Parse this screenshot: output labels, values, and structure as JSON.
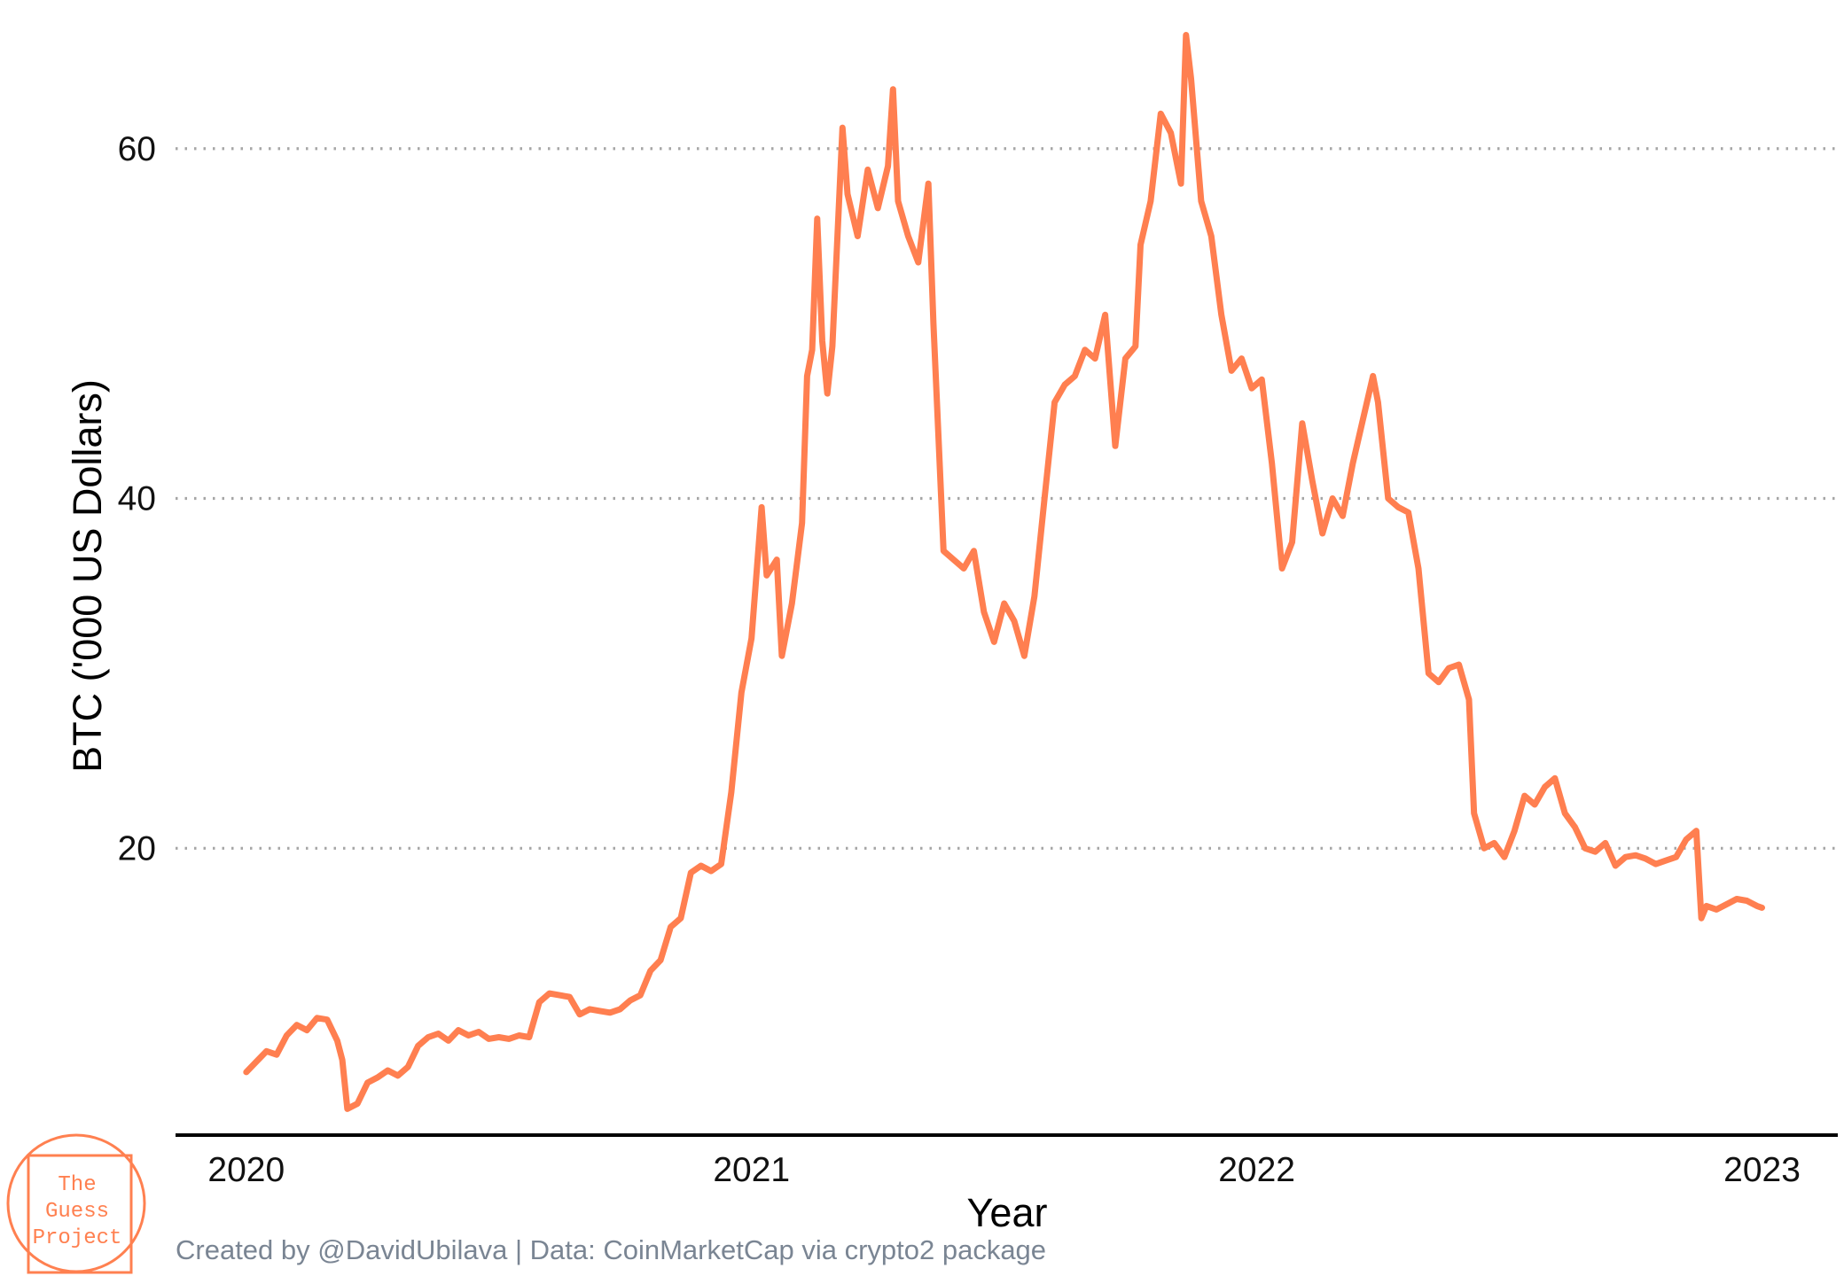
{
  "chart_data": {
    "type": "line",
    "xlabel": "Year",
    "ylabel": "BTC ('000 US Dollars)",
    "caption": "Created by @DavidUbilava | Data: CoinMarketCap via crypto2 package",
    "x_ticks": [
      {
        "value": 2020,
        "label": "2020"
      },
      {
        "value": 2021,
        "label": "2021"
      },
      {
        "value": 2022,
        "label": "2022"
      },
      {
        "value": 2023,
        "label": "2023"
      }
    ],
    "y_ticks": [
      {
        "value": 20,
        "label": "20"
      },
      {
        "value": 40,
        "label": "40"
      },
      {
        "value": 60,
        "label": "60"
      }
    ],
    "xlim": [
      2019.86,
      2023.15
    ],
    "ylim": [
      3.6,
      68.5
    ],
    "grid": {
      "horizontal": "dotted",
      "vertical": false
    },
    "series": [
      {
        "color": "#ff7f50",
        "points": [
          [
            2020.0,
            7.2
          ],
          [
            2020.02,
            7.8
          ],
          [
            2020.04,
            8.4
          ],
          [
            2020.06,
            8.2
          ],
          [
            2020.08,
            9.3
          ],
          [
            2020.1,
            9.9
          ],
          [
            2020.12,
            9.6
          ],
          [
            2020.14,
            10.3
          ],
          [
            2020.16,
            10.2
          ],
          [
            2020.18,
            9.0
          ],
          [
            2020.19,
            7.9
          ],
          [
            2020.2,
            5.1
          ],
          [
            2020.22,
            5.4
          ],
          [
            2020.24,
            6.6
          ],
          [
            2020.26,
            6.9
          ],
          [
            2020.28,
            7.3
          ],
          [
            2020.3,
            7.0
          ],
          [
            2020.32,
            7.5
          ],
          [
            2020.34,
            8.7
          ],
          [
            2020.36,
            9.2
          ],
          [
            2020.38,
            9.4
          ],
          [
            2020.4,
            9.0
          ],
          [
            2020.42,
            9.6
          ],
          [
            2020.44,
            9.3
          ],
          [
            2020.46,
            9.5
          ],
          [
            2020.48,
            9.1
          ],
          [
            2020.5,
            9.2
          ],
          [
            2020.52,
            9.1
          ],
          [
            2020.54,
            9.3
          ],
          [
            2020.56,
            9.2
          ],
          [
            2020.58,
            11.2
          ],
          [
            2020.6,
            11.7
          ],
          [
            2020.62,
            11.6
          ],
          [
            2020.64,
            11.5
          ],
          [
            2020.66,
            10.5
          ],
          [
            2020.68,
            10.8
          ],
          [
            2020.7,
            10.7
          ],
          [
            2020.72,
            10.6
          ],
          [
            2020.74,
            10.8
          ],
          [
            2020.76,
            11.3
          ],
          [
            2020.78,
            11.6
          ],
          [
            2020.8,
            13.0
          ],
          [
            2020.82,
            13.6
          ],
          [
            2020.84,
            15.5
          ],
          [
            2020.86,
            16.0
          ],
          [
            2020.88,
            18.6
          ],
          [
            2020.9,
            19.0
          ],
          [
            2020.92,
            18.7
          ],
          [
            2020.94,
            19.1
          ],
          [
            2020.96,
            23.2
          ],
          [
            2020.98,
            28.9
          ],
          [
            2021.0,
            32.0
          ],
          [
            2021.02,
            39.5
          ],
          [
            2021.03,
            35.6
          ],
          [
            2021.05,
            36.5
          ],
          [
            2021.06,
            31.0
          ],
          [
            2021.08,
            34.0
          ],
          [
            2021.1,
            38.6
          ],
          [
            2021.11,
            47.0
          ],
          [
            2021.12,
            48.5
          ],
          [
            2021.13,
            56.0
          ],
          [
            2021.14,
            49.0
          ],
          [
            2021.15,
            46.0
          ],
          [
            2021.16,
            48.7
          ],
          [
            2021.18,
            61.2
          ],
          [
            2021.19,
            57.4
          ],
          [
            2021.21,
            55.0
          ],
          [
            2021.23,
            58.8
          ],
          [
            2021.25,
            56.6
          ],
          [
            2021.27,
            59.0
          ],
          [
            2021.28,
            63.4
          ],
          [
            2021.29,
            57.0
          ],
          [
            2021.31,
            55.0
          ],
          [
            2021.33,
            53.5
          ],
          [
            2021.35,
            58.0
          ],
          [
            2021.36,
            50.0
          ],
          [
            2021.38,
            37.0
          ],
          [
            2021.4,
            36.5
          ],
          [
            2021.42,
            36.0
          ],
          [
            2021.44,
            37.0
          ],
          [
            2021.46,
            33.5
          ],
          [
            2021.48,
            31.8
          ],
          [
            2021.5,
            34.0
          ],
          [
            2021.52,
            33.0
          ],
          [
            2021.54,
            31.0
          ],
          [
            2021.56,
            34.4
          ],
          [
            2021.58,
            40.0
          ],
          [
            2021.6,
            45.5
          ],
          [
            2021.62,
            46.5
          ],
          [
            2021.64,
            47.0
          ],
          [
            2021.66,
            48.5
          ],
          [
            2021.68,
            48.0
          ],
          [
            2021.7,
            50.5
          ],
          [
            2021.72,
            43.0
          ],
          [
            2021.74,
            48.0
          ],
          [
            2021.76,
            48.7
          ],
          [
            2021.77,
            54.5
          ],
          [
            2021.79,
            57.0
          ],
          [
            2021.81,
            62.0
          ],
          [
            2021.83,
            60.9
          ],
          [
            2021.85,
            58.0
          ],
          [
            2021.86,
            66.5
          ],
          [
            2021.87,
            64.0
          ],
          [
            2021.89,
            57.0
          ],
          [
            2021.91,
            55.0
          ],
          [
            2021.93,
            50.5
          ],
          [
            2021.95,
            47.3
          ],
          [
            2021.97,
            48.0
          ],
          [
            2021.99,
            46.3
          ],
          [
            2022.01,
            46.8
          ],
          [
            2022.03,
            42.0
          ],
          [
            2022.05,
            36.0
          ],
          [
            2022.07,
            37.5
          ],
          [
            2022.09,
            44.3
          ],
          [
            2022.11,
            41.0
          ],
          [
            2022.13,
            38.0
          ],
          [
            2022.15,
            40.0
          ],
          [
            2022.17,
            39.0
          ],
          [
            2022.19,
            42.0
          ],
          [
            2022.21,
            44.5
          ],
          [
            2022.23,
            47.0
          ],
          [
            2022.24,
            45.5
          ],
          [
            2022.26,
            40.0
          ],
          [
            2022.28,
            39.5
          ],
          [
            2022.3,
            39.2
          ],
          [
            2022.32,
            36.0
          ],
          [
            2022.34,
            30.0
          ],
          [
            2022.36,
            29.5
          ],
          [
            2022.38,
            30.3
          ],
          [
            2022.4,
            30.5
          ],
          [
            2022.42,
            28.5
          ],
          [
            2022.43,
            22.0
          ],
          [
            2022.45,
            20.0
          ],
          [
            2022.47,
            20.3
          ],
          [
            2022.49,
            19.5
          ],
          [
            2022.51,
            21.0
          ],
          [
            2022.53,
            23.0
          ],
          [
            2022.55,
            22.5
          ],
          [
            2022.57,
            23.5
          ],
          [
            2022.59,
            24.0
          ],
          [
            2022.61,
            22.0
          ],
          [
            2022.63,
            21.2
          ],
          [
            2022.65,
            20.0
          ],
          [
            2022.67,
            19.8
          ],
          [
            2022.69,
            20.3
          ],
          [
            2022.71,
            19.0
          ],
          [
            2022.73,
            19.5
          ],
          [
            2022.75,
            19.6
          ],
          [
            2022.77,
            19.4
          ],
          [
            2022.79,
            19.1
          ],
          [
            2022.81,
            19.3
          ],
          [
            2022.83,
            19.5
          ],
          [
            2022.85,
            20.5
          ],
          [
            2022.87,
            21.0
          ],
          [
            2022.88,
            16.0
          ],
          [
            2022.89,
            16.7
          ],
          [
            2022.91,
            16.5
          ],
          [
            2022.93,
            16.8
          ],
          [
            2022.95,
            17.1
          ],
          [
            2022.97,
            17.0
          ],
          [
            2022.99,
            16.7
          ],
          [
            2023.0,
            16.6
          ]
        ]
      }
    ]
  },
  "logo": {
    "lines": [
      "The",
      "Guess",
      "Project"
    ],
    "color": "#ff8050"
  }
}
